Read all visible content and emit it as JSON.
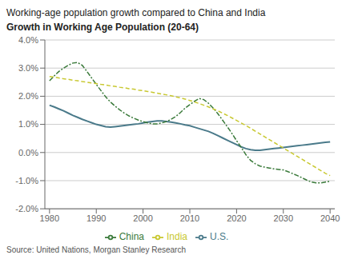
{
  "chart_data": {
    "type": "line",
    "title": "Working-age population growth compared to China and India",
    "subtitle": "Growth in Working Age Population (20-64)",
    "annotations": [
      "Source: United Nations, Morgan Stanley Research"
    ],
    "x": [
      1980,
      1981,
      1982,
      1983,
      1984,
      1985,
      1986,
      1987,
      1988,
      1989,
      1990,
      1991,
      1992,
      1993,
      1994,
      1995,
      1996,
      1997,
      1998,
      1999,
      2000,
      2001,
      2002,
      2003,
      2004,
      2005,
      2006,
      2007,
      2008,
      2009,
      2010,
      2011,
      2012,
      2013,
      2014,
      2015,
      2016,
      2017,
      2018,
      2019,
      2020,
      2021,
      2022,
      2023,
      2024,
      2025,
      2026,
      2027,
      2028,
      2029,
      2030,
      2031,
      2032,
      2033,
      2034,
      2035,
      2036,
      2037,
      2038,
      2039,
      2040
    ],
    "series": [
      {
        "name": "U.S.",
        "color": "#4a7a8a",
        "line_style": "solid",
        "values": [
          1.68,
          1.62,
          1.55,
          1.48,
          1.4,
          1.32,
          1.25,
          1.18,
          1.12,
          1.06,
          1.0,
          0.96,
          0.92,
          0.9,
          0.92,
          0.94,
          0.96,
          0.98,
          1.0,
          1.02,
          1.05,
          1.08,
          1.1,
          1.12,
          1.12,
          1.1,
          1.08,
          1.05,
          1.02,
          0.98,
          0.95,
          0.9,
          0.85,
          0.8,
          0.75,
          0.68,
          0.6,
          0.52,
          0.44,
          0.36,
          0.28,
          0.2,
          0.14,
          0.1,
          0.08,
          0.08,
          0.1,
          0.12,
          0.14,
          0.16,
          0.18,
          0.2,
          0.22,
          0.24,
          0.26,
          0.28,
          0.3,
          0.32,
          0.34,
          0.36,
          0.38
        ]
      },
      {
        "name": "China",
        "color": "#3a7a3a",
        "line_style": "dashdot",
        "values": [
          2.55,
          2.72,
          2.88,
          3.0,
          3.1,
          3.18,
          3.2,
          3.1,
          2.88,
          2.65,
          2.42,
          2.2,
          1.98,
          1.8,
          1.65,
          1.52,
          1.4,
          1.3,
          1.22,
          1.15,
          1.1,
          1.05,
          1.02,
          1.02,
          1.05,
          1.1,
          1.18,
          1.28,
          1.42,
          1.58,
          1.7,
          1.82,
          1.92,
          1.88,
          1.75,
          1.58,
          1.38,
          1.15,
          0.92,
          0.68,
          0.42,
          0.18,
          -0.08,
          -0.28,
          -0.4,
          -0.48,
          -0.52,
          -0.55,
          -0.58,
          -0.6,
          -0.62,
          -0.68,
          -0.75,
          -0.82,
          -0.9,
          -0.98,
          -1.05,
          -1.08,
          -1.08,
          -1.05,
          -1.02
        ]
      },
      {
        "name": "India",
        "color": "#c8c830",
        "line_style": "dashed",
        "values": [
          2.7,
          2.68,
          2.65,
          2.62,
          2.6,
          2.57,
          2.55,
          2.52,
          2.5,
          2.47,
          2.45,
          2.42,
          2.4,
          2.37,
          2.35,
          2.32,
          2.3,
          2.27,
          2.25,
          2.22,
          2.2,
          2.17,
          2.14,
          2.11,
          2.08,
          2.05,
          2.02,
          1.98,
          1.94,
          1.9,
          1.85,
          1.8,
          1.74,
          1.68,
          1.62,
          1.55,
          1.48,
          1.4,
          1.32,
          1.23,
          1.14,
          1.05,
          0.96,
          0.86,
          0.76,
          0.66,
          0.56,
          0.46,
          0.36,
          0.26,
          0.16,
          0.06,
          -0.04,
          -0.14,
          -0.24,
          -0.34,
          -0.44,
          -0.54,
          -0.64,
          -0.74,
          -0.82
        ]
      }
    ],
    "xlim": [
      1979,
      2041
    ],
    "xticks": [
      1980,
      1990,
      2000,
      2010,
      2020,
      2030,
      2040
    ],
    "ylim": [
      -2.0,
      4.0
    ],
    "yticks": [
      {
        "value": -2.0,
        "label": "-2.0%"
      },
      {
        "value": -1.0,
        "label": "-1.0%"
      },
      {
        "value": 0.0,
        "label": "0.0%"
      },
      {
        "value": 1.0,
        "label": "1.0%"
      },
      {
        "value": 2.0,
        "label": "2.0%"
      },
      {
        "value": 3.0,
        "label": "3.0%"
      },
      {
        "value": 4.0,
        "label": "4.0%"
      }
    ],
    "grid": true
  }
}
